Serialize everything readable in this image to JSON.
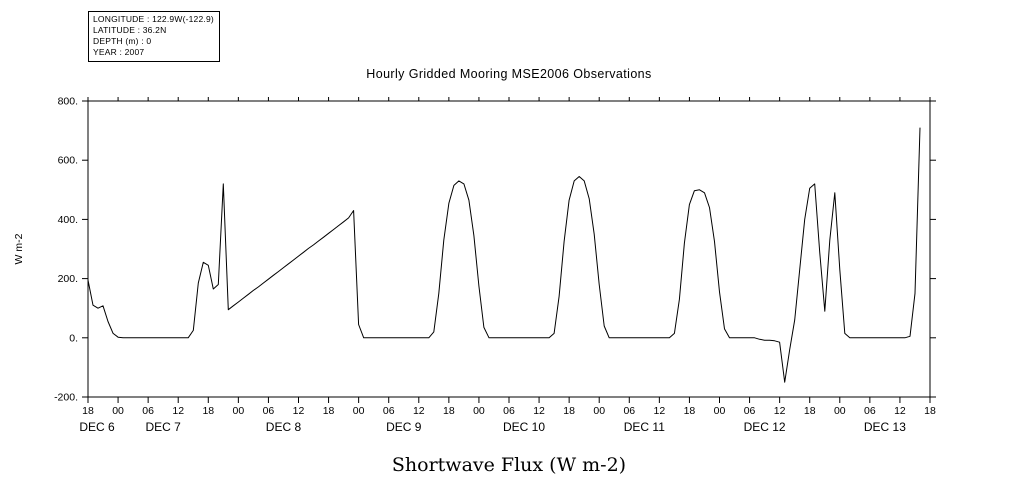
{
  "header": {
    "info_lines": [
      "LONGITUDE : 122.9W(-122.9)",
      "LATITUDE : 36.2N",
      "DEPTH (m) : 0",
      "YEAR : 2007"
    ]
  },
  "title": "Hourly Gridded Mooring MSE2006 Observations",
  "footer_label": "Shortwave Flux (W m-2)",
  "chart_data": {
    "type": "line",
    "title": "Hourly Gridded Mooring MSE2006 Observations",
    "xlabel": "Shortwave Flux (W m-2)",
    "ylabel": "W m-2",
    "ylim": [
      -200,
      800
    ],
    "ytick_values": [
      -200,
      0,
      200,
      400,
      600,
      800
    ],
    "ytick_labels": [
      "-200.",
      "0.",
      "200.",
      "400.",
      "600.",
      "800."
    ],
    "x_start": "DEC 6 18:00",
    "x_interval_hours": 1,
    "total_hours": 168,
    "xtick_interval_hours": 6,
    "xtick_labels": [
      "18",
      "00",
      "06",
      "12",
      "18",
      "00",
      "06",
      "12",
      "18",
      "00",
      "06",
      "12",
      "18",
      "00",
      "06",
      "12",
      "18",
      "00",
      "06",
      "12",
      "18",
      "00",
      "06",
      "12",
      "18",
      "00",
      "06",
      "12",
      "18"
    ],
    "date_labels": [
      {
        "label": "DEC 6",
        "hour": 1.8
      },
      {
        "label": "DEC 7",
        "hour": 15
      },
      {
        "label": "DEC 8",
        "hour": 39
      },
      {
        "label": "DEC 9",
        "hour": 63
      },
      {
        "label": "DEC 10",
        "hour": 87
      },
      {
        "label": "DEC 11",
        "hour": 111
      },
      {
        "label": "DEC 12",
        "hour": 135
      },
      {
        "label": "DEC 13",
        "hour": 159
      }
    ],
    "series_name": "Shortwave Flux (W m-2)",
    "line_color": "#000000",
    "grid": false,
    "legend": false,
    "values": [
      195,
      110,
      100,
      108,
      55,
      15,
      2,
      0,
      0,
      0,
      0,
      0,
      0,
      0,
      0,
      0,
      0,
      0,
      0,
      0,
      0,
      25,
      185,
      255,
      245,
      165,
      180,
      520,
      95,
      108,
      121,
      134,
      147,
      160,
      172,
      185,
      198,
      211,
      224,
      237,
      250,
      263,
      276,
      289,
      302,
      314,
      327,
      340,
      353,
      366,
      379,
      392,
      405,
      430,
      45,
      0,
      0,
      0,
      0,
      0,
      0,
      0,
      0,
      0,
      0,
      0,
      0,
      0,
      0,
      20,
      150,
      330,
      455,
      515,
      530,
      520,
      465,
      345,
      175,
      35,
      0,
      0,
      0,
      0,
      0,
      0,
      0,
      0,
      0,
      0,
      0,
      0,
      0,
      15,
      140,
      325,
      465,
      530,
      545,
      530,
      470,
      350,
      180,
      40,
      0,
      0,
      0,
      0,
      0,
      0,
      0,
      0,
      0,
      0,
      0,
      0,
      0,
      15,
      130,
      320,
      450,
      497,
      500,
      490,
      440,
      325,
      155,
      30,
      0,
      0,
      0,
      0,
      0,
      0,
      -5,
      -8,
      -8,
      -10,
      -15,
      -150,
      -40,
      60,
      230,
      400,
      505,
      520,
      290,
      90,
      330,
      490,
      230,
      15,
      0,
      0,
      0,
      0,
      0,
      0,
      0,
      0,
      0,
      0,
      0,
      0,
      5,
      150,
      710
    ]
  }
}
